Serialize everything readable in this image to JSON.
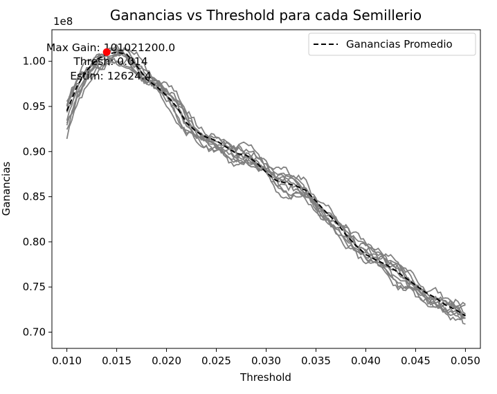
{
  "chart_data": {
    "type": "line",
    "title": "Ganancias vs Threshold para cada Semillerio",
    "xlabel": "Threshold",
    "ylabel": "Ganancias",
    "y_scale_label": "1e8",
    "xlim": [
      0.0085,
      0.0515
    ],
    "ylim": [
      0.682,
      1.035
    ],
    "xticks": [
      {
        "value": 0.01,
        "label": "0.010"
      },
      {
        "value": 0.015,
        "label": "0.015"
      },
      {
        "value": 0.02,
        "label": "0.020"
      },
      {
        "value": 0.025,
        "label": "0.025"
      },
      {
        "value": 0.03,
        "label": "0.030"
      },
      {
        "value": 0.035,
        "label": "0.035"
      },
      {
        "value": 0.04,
        "label": "0.040"
      },
      {
        "value": 0.045,
        "label": "0.045"
      },
      {
        "value": 0.05,
        "label": "0.050"
      }
    ],
    "yticks": [
      {
        "value": 0.7,
        "label": "0.70"
      },
      {
        "value": 0.75,
        "label": "0.75"
      },
      {
        "value": 0.8,
        "label": "0.80"
      },
      {
        "value": 0.85,
        "label": "0.85"
      },
      {
        "value": 0.9,
        "label": "0.90"
      },
      {
        "value": 0.95,
        "label": "0.95"
      },
      {
        "value": 1.0,
        "label": "1.00"
      }
    ],
    "series_color": "#808080",
    "mean_color": "#000000",
    "marker_color": "#ff0000",
    "mean_series": {
      "name": "Ganancias Promedio",
      "x": [
        0.01,
        0.011,
        0.012,
        0.013,
        0.014,
        0.015,
        0.016,
        0.017,
        0.018,
        0.019,
        0.02,
        0.021,
        0.022,
        0.023,
        0.024,
        0.025,
        0.026,
        0.027,
        0.028,
        0.029,
        0.03,
        0.031,
        0.032,
        0.033,
        0.034,
        0.035,
        0.036,
        0.037,
        0.038,
        0.039,
        0.04,
        0.041,
        0.042,
        0.043,
        0.044,
        0.045,
        0.046,
        0.047,
        0.048,
        0.049,
        0.05
      ],
      "y": [
        0.945,
        0.972,
        0.99,
        1.002,
        1.008,
        1.01,
        1.008,
        0.995,
        0.98,
        0.972,
        0.962,
        0.95,
        0.932,
        0.922,
        0.916,
        0.912,
        0.905,
        0.898,
        0.896,
        0.888,
        0.877,
        0.868,
        0.865,
        0.862,
        0.857,
        0.845,
        0.833,
        0.822,
        0.808,
        0.796,
        0.786,
        0.78,
        0.775,
        0.768,
        0.76,
        0.752,
        0.744,
        0.738,
        0.73,
        0.725,
        0.718
      ]
    },
    "max_point": {
      "x": 0.014,
      "y": 1.010212
    },
    "annotation_lines": [
      "Max Gain: 101021200.0",
      "Thresh: 0.014",
      "Estim: 12624.4"
    ],
    "legend": {
      "position": "top-right",
      "entries": [
        "Ganancias Promedio"
      ]
    },
    "grid": false
  }
}
